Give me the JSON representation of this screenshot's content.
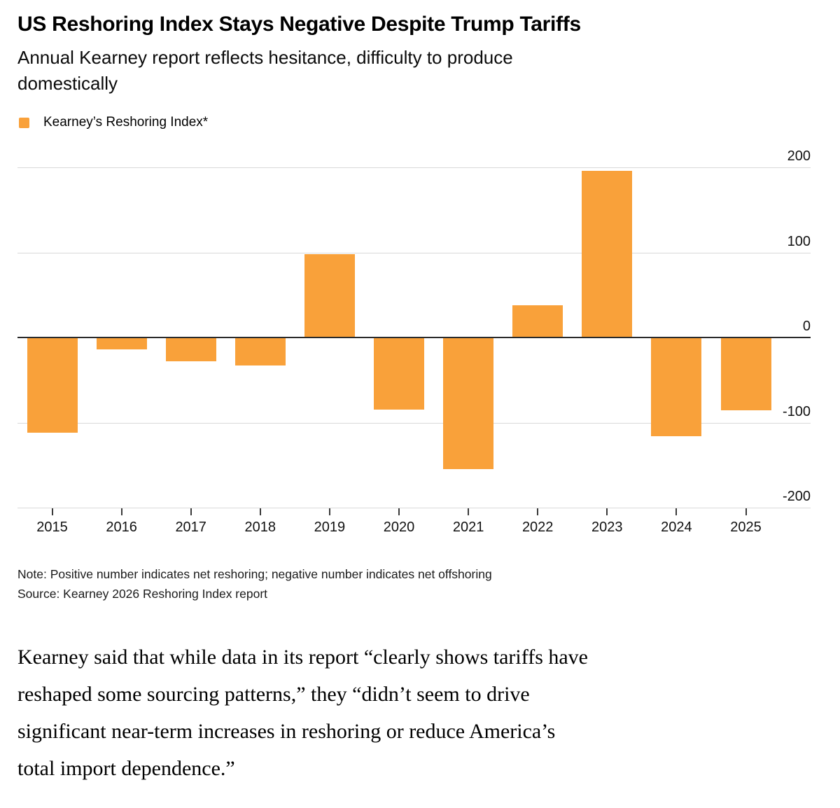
{
  "header": {
    "title": "US Reshoring Index Stays Negative Despite Trump Tariffs",
    "subtitle": "Annual Kearney report reflects hesitance, difficulty to produce\ndomestically"
  },
  "legend": {
    "label": "Kearney’s Reshoring Index*"
  },
  "chart_data": {
    "type": "bar",
    "title": "US Reshoring Index Stays Negative Despite Trump Tariffs",
    "series_name": "Kearney’s Reshoring Index*",
    "categories": [
      "2015",
      "2016",
      "2017",
      "2018",
      "2019",
      "2020",
      "2021",
      "2022",
      "2023",
      "2024",
      "2025"
    ],
    "values": [
      -112,
      -14,
      -28,
      -33,
      98,
      -85,
      -155,
      38,
      196,
      -116,
      -86
    ],
    "xlabel": "",
    "ylabel": "",
    "ylim": [
      -200,
      200
    ],
    "y_ticks": [
      200,
      100,
      0,
      -100,
      -200
    ],
    "grid": "horizontal",
    "legend_position": "top-left",
    "bar_color": "#F9A13A"
  },
  "footnote": {
    "note": "Note: Positive number indicates net reshoring; negative number indicates net offshoring",
    "source": "Source: Kearney 2026 Reshoring Index report"
  },
  "article": {
    "paragraph": "Kearney said that while data in its report “clearly shows tariffs have\nreshaped some sourcing patterns,” they “didn’t seem to drive\nsignificant near-term increases in reshoring or reduce America’s\ntotal import dependence.”"
  },
  "colors": {
    "accent_orange": "#F9A13A",
    "gridline": "#d9d9d9",
    "zero_line": "#2a2a2a",
    "text": "#000000"
  }
}
